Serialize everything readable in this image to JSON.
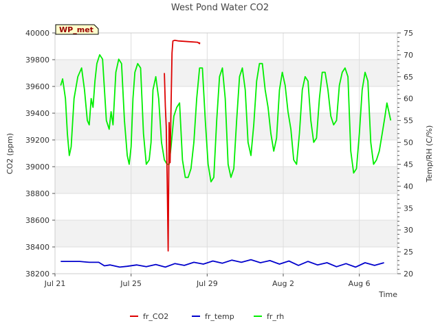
{
  "chart_data": {
    "type": "line",
    "title": "West Pond Water CO2",
    "site_badge": "WP_met",
    "xlabel": "Time",
    "ylabel_left": "CO2 (ppm)",
    "ylabel_right": "Temp/RH (C/%)",
    "x_unit": "date (Jul 21 = day 0)",
    "xlim": [
      0,
      18.0
    ],
    "ylim_left": [
      38200,
      40000
    ],
    "ylim_right": [
      20,
      75
    ],
    "x_ticks": [
      {
        "label": "Jul 21",
        "value": 0
      },
      {
        "label": "Jul 25",
        "value": 4
      },
      {
        "label": "Jul 29",
        "value": 8
      },
      {
        "label": "Aug 2",
        "value": 12
      },
      {
        "label": "Aug 6",
        "value": 16
      }
    ],
    "y_ticks_left": [
      {
        "label": "38200",
        "value": 38200
      },
      {
        "label": "38400",
        "value": 38400
      },
      {
        "label": "38600",
        "value": 38600
      },
      {
        "label": "38800",
        "value": 38800
      },
      {
        "label": "39000",
        "value": 39000
      },
      {
        "label": "39200",
        "value": 39200
      },
      {
        "label": "39400",
        "value": 39400
      },
      {
        "label": "39600",
        "value": 39600
      },
      {
        "label": "39800",
        "value": 39800
      },
      {
        "label": "40000",
        "value": 40000
      }
    ],
    "y_ticks_right": [
      {
        "label": "20",
        "value": 20
      },
      {
        "label": "25",
        "value": 25
      },
      {
        "label": "30",
        "value": 30
      },
      {
        "label": "35",
        "value": 35
      },
      {
        "label": "40",
        "value": 40
      },
      {
        "label": "45",
        "value": 45
      },
      {
        "label": "50",
        "value": 50
      },
      {
        "label": "55",
        "value": 55
      },
      {
        "label": "60",
        "value": 60
      },
      {
        "label": "65",
        "value": 65
      },
      {
        "label": "70",
        "value": 70
      },
      {
        "label": "75",
        "value": 75
      }
    ],
    "grid": true,
    "legend_position": "bottom-center",
    "series": [
      {
        "name": "fr_CO2",
        "axis": "left",
        "color": "#dd0000",
        "x": [
          5.75,
          5.8,
          5.85,
          5.9,
          5.95,
          6.0,
          6.05,
          6.1,
          6.15,
          6.2,
          6.3,
          6.5,
          7.0,
          7.5,
          7.6,
          7.6
        ],
        "y": [
          39700,
          39450,
          39300,
          38900,
          38370,
          39330,
          39030,
          39450,
          39850,
          39940,
          39945,
          39940,
          39935,
          39930,
          39920,
          39930
        ]
      },
      {
        "name": "fr_temp",
        "axis": "right",
        "color": "#0000cc",
        "x": [
          0.3,
          0.8,
          1.3,
          1.8,
          2.3,
          2.6,
          2.9,
          3.4,
          3.8,
          4.3,
          4.8,
          5.3,
          5.8,
          6.3,
          6.8,
          7.3,
          7.8,
          8.3,
          8.8,
          9.3,
          9.8,
          10.3,
          10.8,
          11.3,
          11.8,
          12.3,
          12.8,
          13.3,
          13.8,
          14.3,
          14.8,
          15.3,
          15.8,
          16.3,
          16.8,
          17.3
        ],
        "y": [
          22.8,
          22.8,
          22.8,
          22.6,
          22.6,
          21.8,
          22.0,
          21.5,
          21.7,
          22.0,
          21.6,
          22.1,
          21.5,
          22.3,
          21.9,
          22.6,
          22.2,
          22.9,
          22.4,
          23.1,
          22.6,
          23.2,
          22.5,
          23.0,
          22.2,
          22.9,
          21.9,
          22.8,
          22.0,
          22.5,
          21.6,
          22.3,
          21.5,
          22.5,
          21.9,
          22.5
        ]
      },
      {
        "name": "fr_rh",
        "axis": "right",
        "color": "#00ee00",
        "x": [
          0.3,
          0.4,
          0.55,
          0.65,
          0.75,
          0.85,
          1.0,
          1.2,
          1.4,
          1.55,
          1.7,
          1.8,
          1.9,
          2.0,
          2.1,
          2.2,
          2.35,
          2.5,
          2.7,
          2.85,
          2.95,
          3.05,
          3.2,
          3.35,
          3.5,
          3.65,
          3.8,
          3.9,
          4.0,
          4.1,
          4.2,
          4.35,
          4.5,
          4.65,
          4.8,
          4.95,
          5.05,
          5.15,
          5.3,
          5.45,
          5.6,
          5.75,
          5.9,
          6.0,
          6.1,
          6.25,
          6.4,
          6.55,
          6.7,
          6.85,
          7.0,
          7.15,
          7.3,
          7.45,
          7.6,
          7.75,
          7.9,
          8.05,
          8.2,
          8.35,
          8.5,
          8.65,
          8.8,
          8.95,
          9.1,
          9.25,
          9.4,
          9.55,
          9.7,
          9.85,
          10.0,
          10.15,
          10.3,
          10.45,
          10.6,
          10.75,
          10.9,
          11.05,
          11.2,
          11.35,
          11.5,
          11.65,
          11.8,
          11.95,
          12.1,
          12.25,
          12.4,
          12.55,
          12.7,
          12.85,
          13.0,
          13.15,
          13.3,
          13.45,
          13.6,
          13.75,
          13.9,
          14.05,
          14.2,
          14.35,
          14.5,
          14.65,
          14.8,
          14.95,
          15.1,
          15.25,
          15.4,
          15.55,
          15.7,
          15.85,
          16.0,
          16.15,
          16.3,
          16.45,
          16.6,
          16.75,
          16.9,
          17.05,
          17.2,
          17.35,
          17.45,
          17.55,
          17.65
        ],
        "y": [
          63,
          64.5,
          60,
          52,
          47,
          49,
          60,
          65,
          67,
          62,
          55,
          54,
          60,
          58,
          64,
          68,
          70,
          69,
          55,
          53,
          57,
          54,
          66,
          69,
          68,
          55,
          47,
          45,
          49,
          60,
          66,
          68,
          67,
          52,
          45,
          46,
          50,
          62,
          65,
          60,
          50,
          46,
          45,
          45,
          49,
          56,
          58,
          59,
          46,
          42,
          42,
          44,
          50,
          60,
          67,
          67,
          55,
          45,
          41,
          42,
          55,
          65,
          67,
          60,
          45,
          42,
          44,
          55,
          65,
          67,
          62,
          50,
          47,
          54,
          64,
          68,
          68,
          62,
          58,
          52,
          48,
          51,
          62,
          66,
          63,
          57,
          53,
          46,
          45,
          52,
          62,
          65,
          64,
          55,
          50,
          51,
          60,
          66,
          66,
          62,
          56,
          54,
          55,
          63,
          66,
          67,
          65,
          48,
          43,
          44,
          52,
          62,
          66,
          64,
          50,
          45,
          46,
          48,
          52,
          56,
          59,
          57,
          55
        ]
      }
    ]
  }
}
